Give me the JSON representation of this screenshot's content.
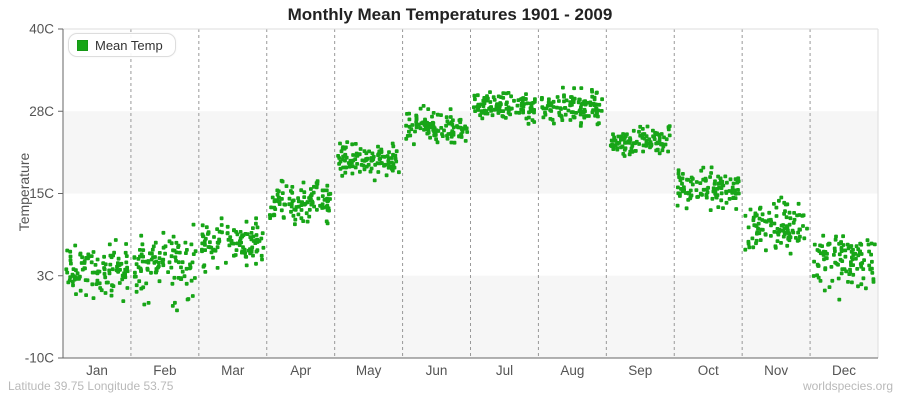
{
  "title": "Monthly Mean Temperatures 1901 - 2009",
  "legend": {
    "label": "Mean Temp",
    "position": "top-left"
  },
  "footer": {
    "left": "Latitude 39.75 Longitude 53.75",
    "right": "worldspecies.org"
  },
  "colors": {
    "series": "#17a517",
    "band": "#f6f6f6",
    "grid_dashed": "#999999",
    "axis": "#666666",
    "border_light": "#dddddd",
    "tick_text": "#545454",
    "title_text": "#222222",
    "footer_text": "#b9b9b9"
  },
  "chart_data": {
    "type": "scatter",
    "title": "Monthly Mean Temperatures 1901 - 2009",
    "xlabel": "",
    "ylabel": "Temperature",
    "ylim": [
      -10,
      40
    ],
    "grid": {
      "vertical_dashed_month_boundaries": true,
      "alternating_horizontal_bands": true
    },
    "legend_entries": [
      {
        "name": "Mean Temp",
        "color": "#17a517"
      }
    ],
    "y_ticks": [
      {
        "value": 40,
        "label": "40C"
      },
      {
        "value": 27.5,
        "label": "28C"
      },
      {
        "value": 15,
        "label": "15C"
      },
      {
        "value": 2.5,
        "label": "3C"
      },
      {
        "value": -10,
        "label": "-10C"
      }
    ],
    "x_categories": [
      "Jan",
      "Feb",
      "Mar",
      "Apr",
      "May",
      "Jun",
      "Jul",
      "Aug",
      "Sep",
      "Oct",
      "Nov",
      "Dec"
    ],
    "points_per_month": 109,
    "monthly_stats": [
      {
        "label": "Jan",
        "mean": 3.4,
        "std": 2.1,
        "min": -5.5,
        "max": 10.0
      },
      {
        "label": "Feb",
        "mean": 3.9,
        "std": 2.3,
        "min": -5.0,
        "max": 10.5
      },
      {
        "label": "Mar",
        "mean": 7.4,
        "std": 1.9,
        "min": 2.8,
        "max": 12.5
      },
      {
        "label": "Apr",
        "mean": 13.8,
        "std": 1.5,
        "min": 10.0,
        "max": 17.5
      },
      {
        "label": "May",
        "mean": 20.2,
        "std": 1.4,
        "min": 16.5,
        "max": 23.5
      },
      {
        "label": "Jun",
        "mean": 25.0,
        "std": 1.3,
        "min": 22.0,
        "max": 28.7
      },
      {
        "label": "Jul",
        "mean": 28.2,
        "std": 1.2,
        "min": 25.5,
        "max": 31.2
      },
      {
        "label": "Aug",
        "mean": 28.1,
        "std": 1.4,
        "min": 25.0,
        "max": 32.0
      },
      {
        "label": "Sep",
        "mean": 23.0,
        "std": 1.1,
        "min": 20.0,
        "max": 26.0
      },
      {
        "label": "Oct",
        "mean": 15.8,
        "std": 1.4,
        "min": 11.5,
        "max": 19.5
      },
      {
        "label": "Nov",
        "mean": 9.9,
        "std": 1.8,
        "min": 4.0,
        "max": 14.5
      },
      {
        "label": "Dec",
        "mean": 4.6,
        "std": 2.1,
        "min": -2.5,
        "max": 9.5
      }
    ]
  }
}
